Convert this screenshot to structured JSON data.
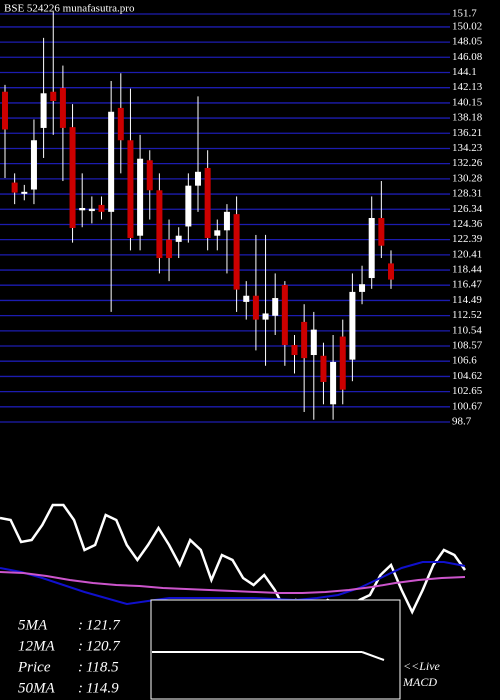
{
  "chart_data": {
    "type": "candlestick",
    "title": "BSE 524226 munafasutra.pro",
    "open": [
      141.6,
      129.8,
      128.4,
      128.9,
      136.9,
      141.6,
      142.1,
      137,
      126.2,
      126.1,
      126.9,
      126,
      139.5,
      135.3,
      122.9,
      132.7,
      128.8,
      122.4,
      122.1,
      124.1,
      129.4,
      131.7,
      122.9,
      123.6,
      125.7,
      114.3,
      115.1,
      112,
      112.5,
      116.5,
      108.7,
      111.7,
      107.4,
      107.3,
      101,
      109.8,
      106.8,
      115.6,
      117.4,
      125.2,
      119.3
    ],
    "high": [
      142.5,
      131,
      129.5,
      138,
      148.6,
      152,
      145,
      140,
      131,
      128,
      128,
      143,
      144,
      142,
      136,
      134,
      131,
      125,
      124,
      131,
      141,
      134,
      125,
      127,
      128,
      117,
      123,
      123,
      118,
      117,
      110,
      114,
      113,
      109,
      110,
      112,
      118,
      119,
      128,
      130,
      121
    ],
    "low": [
      130.4,
      127,
      127.5,
      127,
      133,
      136,
      130,
      122,
      124,
      124.5,
      125,
      113,
      131,
      121,
      121,
      125,
      118,
      117,
      120,
      122,
      126,
      121,
      121,
      118,
      113,
      112,
      108,
      106,
      110,
      106,
      105,
      100,
      99,
      101,
      99,
      101,
      104,
      114,
      116,
      120,
      116
    ],
    "close": [
      136.7,
      128.5,
      128.6,
      135.3,
      141.4,
      140.4,
      136.9,
      123.9,
      126.5,
      126.4,
      126,
      139,
      135.3,
      122.6,
      132.9,
      128.8,
      120,
      120,
      122.9,
      129.4,
      131.2,
      122.6,
      123.6,
      126,
      115.9,
      115.1,
      112,
      112.8,
      114.8,
      108.7,
      107.4,
      107,
      110.7,
      103.9,
      106.5,
      102.9,
      115.6,
      116.6,
      125.2,
      121.6,
      117.2
    ],
    "up_color": "#ffffff",
    "down_color": "#cc0000",
    "grid_color": "#1c1cb0",
    "ylim": [
      98.7,
      151.7
    ],
    "yticks": [
      151.7,
      150.02,
      148.05,
      146.08,
      144.1,
      142.13,
      140.15,
      138.18,
      136.21,
      134.23,
      132.26,
      130.28,
      128.31,
      126.34,
      124.36,
      122.39,
      120.41,
      118.44,
      116.47,
      114.49,
      112.52,
      110.54,
      108.57,
      106.6,
      104.62,
      102.65,
      100.67,
      98.7
    ],
    "lower_panel": {
      "type": "line",
      "ylim": [
        0,
        100
      ],
      "series": [
        {
          "color": "#ffffff",
          "values": [
            91,
            90,
            79,
            80,
            87.5,
            97.5,
            97.5,
            90,
            75,
            77.5,
            92.5,
            90,
            77.5,
            70,
            77.5,
            86,
            77.5,
            67.5,
            80,
            75,
            60,
            72.5,
            70,
            61,
            57.5,
            62.5,
            55,
            45,
            50,
            46,
            45,
            50,
            47.5,
            44,
            50,
            52.5,
            62.5,
            67.5,
            55,
            44,
            55,
            67.5,
            75,
            72.5,
            65
          ]
        },
        {
          "color": "#1010cc",
          "values": [
            66,
            64,
            61,
            57.5,
            54,
            51,
            48,
            49.5,
            51,
            51,
            51,
            51,
            51,
            50.5,
            50,
            51,
            52.5,
            56,
            61,
            66,
            69,
            69,
            67
          ]
        },
        {
          "color": "#cc55cc",
          "values": [
            64,
            63.5,
            62,
            60,
            58.5,
            57.5,
            57,
            56,
            55.5,
            55,
            54.5,
            54,
            53.5,
            53.5,
            54,
            55,
            56.5,
            58.5,
            60,
            61,
            61.5
          ]
        }
      ]
    },
    "info": [
      [
        "5MA",
        "121.7"
      ],
      [
        "12MA",
        "120.7"
      ],
      [
        "Price",
        "118.5"
      ],
      [
        "50MA",
        "114.9"
      ]
    ],
    "macd_label": [
      "<<Live",
      "MACD"
    ]
  }
}
